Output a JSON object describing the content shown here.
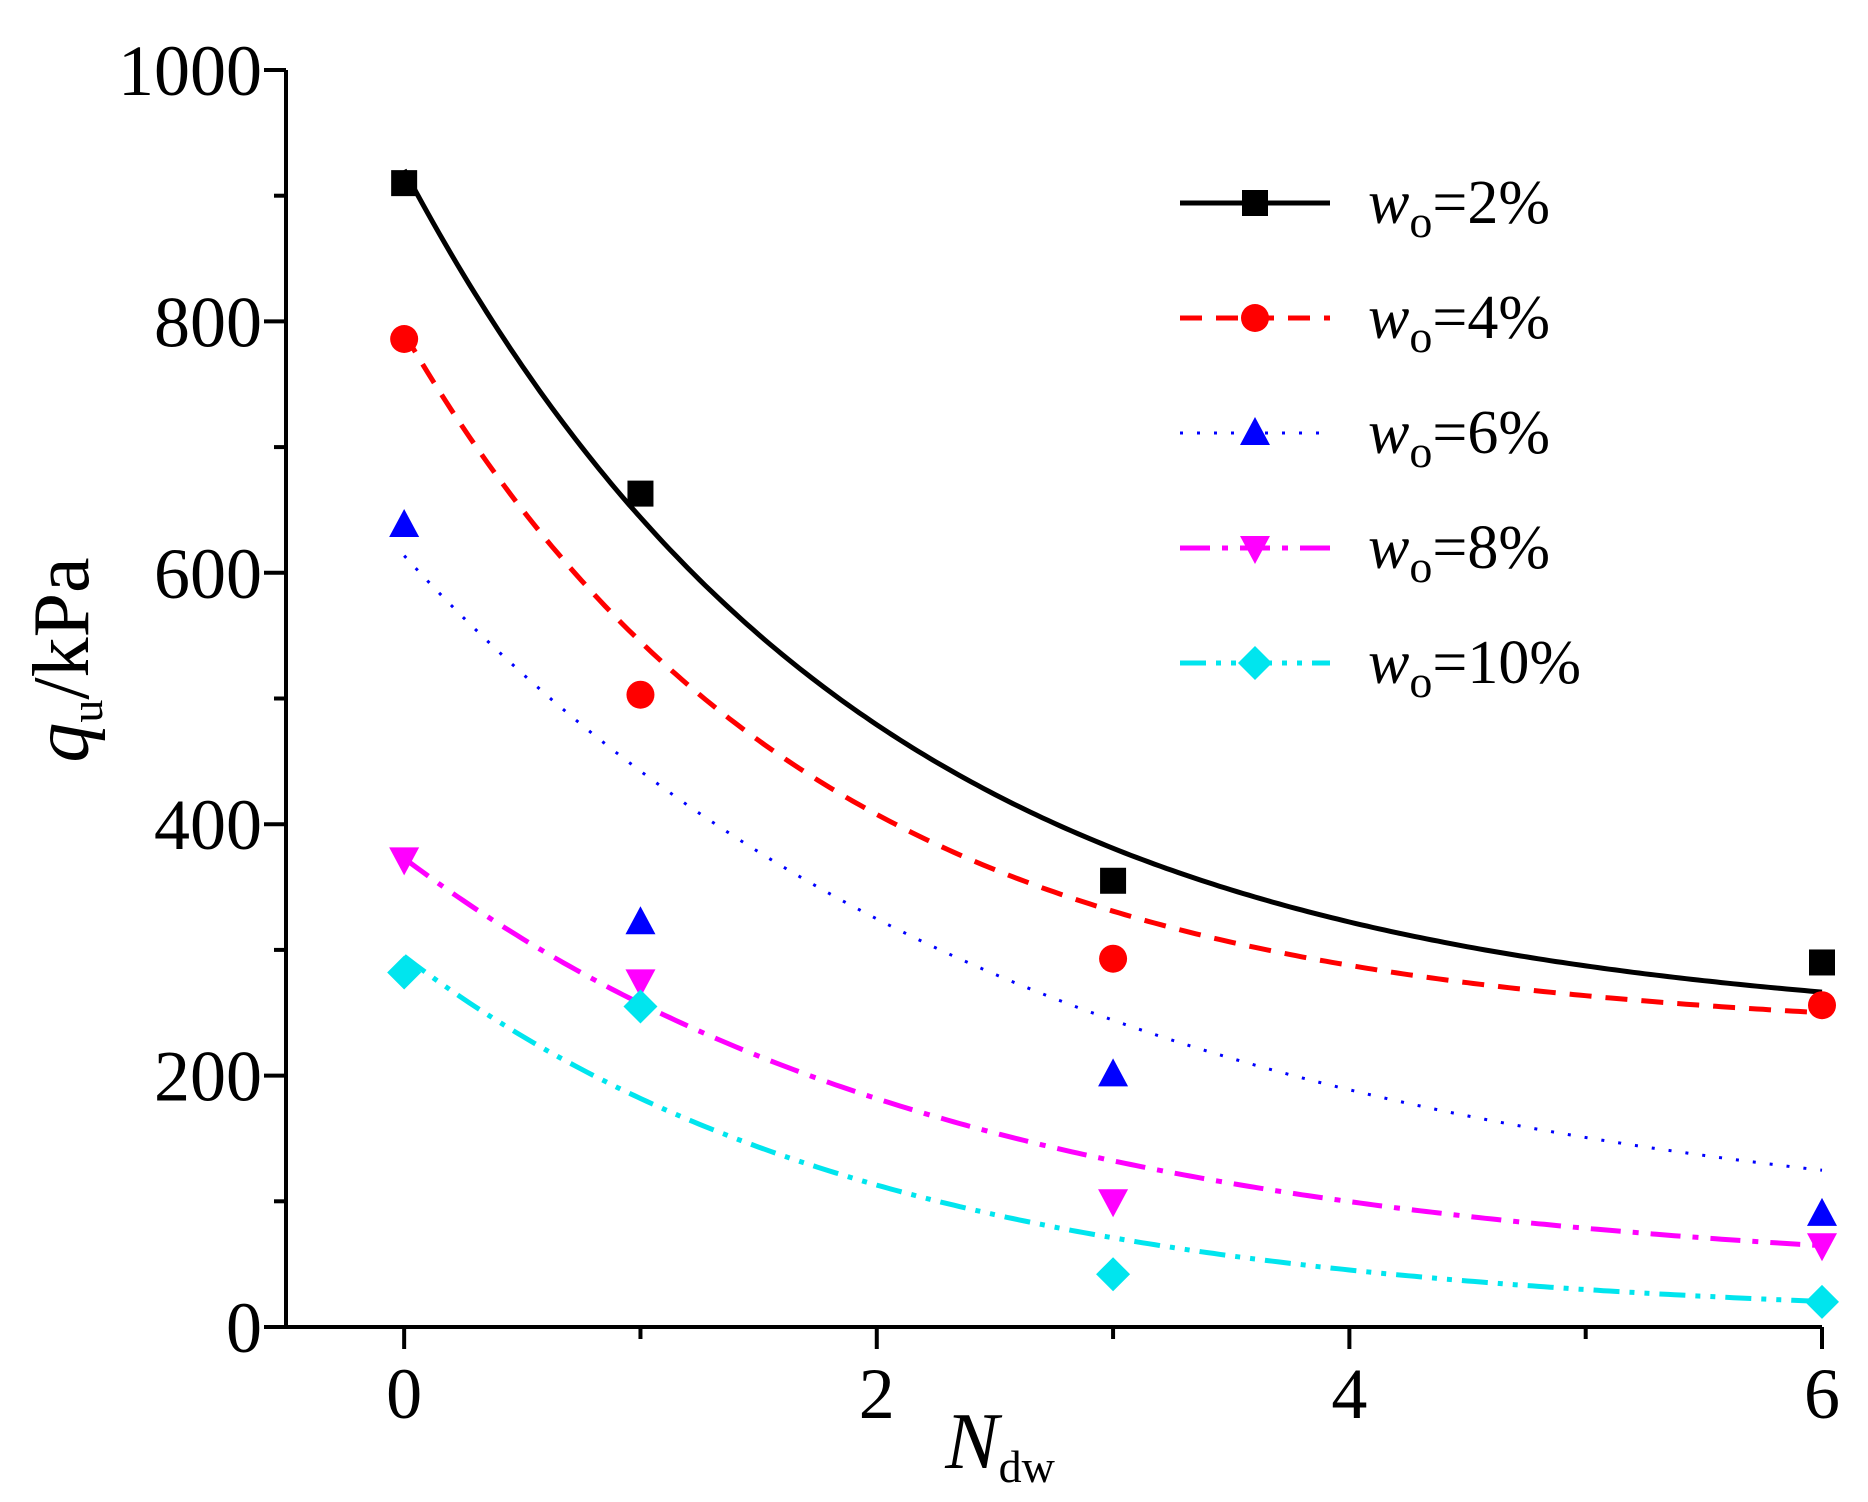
{
  "chart_data": {
    "type": "scatter",
    "title": "",
    "xlabel": {
      "main": "N",
      "sub": "dw"
    },
    "ylabel": {
      "main": "q",
      "sub": "u",
      "rest": "/kPa"
    },
    "xlim": [
      -0.5,
      6.0
    ],
    "ylim": [
      0,
      1000
    ],
    "xticks": [
      0,
      2,
      4,
      6
    ],
    "xtick_labels": [
      "0",
      "2",
      "4",
      "6"
    ],
    "yticks": [
      0,
      200,
      400,
      600,
      800,
      1000
    ],
    "ytick_labels": [
      "0",
      "200",
      "400",
      "600",
      "800",
      "1000"
    ],
    "grid": false,
    "legend_position": "top-right",
    "x": [
      0,
      1,
      3,
      6
    ],
    "series": [
      {
        "name": "wo=2%",
        "legend": {
          "w": "w",
          "sub": "o",
          "rest": "=2%"
        },
        "color": "#000000",
        "marker": "square",
        "line_style": "solid",
        "values": [
          910,
          663,
          355,
          290
        ],
        "fit": {
          "a": 684.8,
          "b": 0.5172,
          "c": 235.7
        }
      },
      {
        "name": "wo=4%",
        "legend": {
          "w": "w",
          "sub": "o",
          "rest": "=4%"
        },
        "color": "#ff0000",
        "marker": "circle",
        "line_style": "dash",
        "values": [
          786,
          503,
          293,
          256
        ],
        "fit": {
          "a": 557.8,
          "b": 0.5796,
          "c": 232.8
        }
      },
      {
        "name": "wo=6%",
        "legend": {
          "w": "w",
          "sub": "o",
          "rest": "=6%"
        },
        "color": "#0000ff",
        "marker": "triangle-up",
        "line_style": "dot",
        "values": [
          638,
          322,
          201,
          90
        ],
        "fit": {
          "a": 545.8,
          "b": 0.3768,
          "c": 67.8
        }
      },
      {
        "name": "wo=8%",
        "legend": {
          "w": "w",
          "sub": "o",
          "rest": "=8%"
        },
        "color": "#ff00ff",
        "marker": "triangle-down",
        "line_style": "dashdot",
        "values": [
          372,
          275,
          100,
          65
        ],
        "fit": {
          "a": 334.5,
          "b": 0.4239,
          "c": 38.4
        }
      },
      {
        "name": "wo=10%",
        "legend": {
          "w": "w",
          "sub": "o",
          "rest": "=10%"
        },
        "color": "#00e5ee",
        "marker": "diamond",
        "line_style": "dashdotdot",
        "values": [
          282,
          255,
          42,
          20
        ],
        "fit": {
          "a": 289.4,
          "b": 0.4955,
          "c": 5.5
        }
      }
    ]
  }
}
